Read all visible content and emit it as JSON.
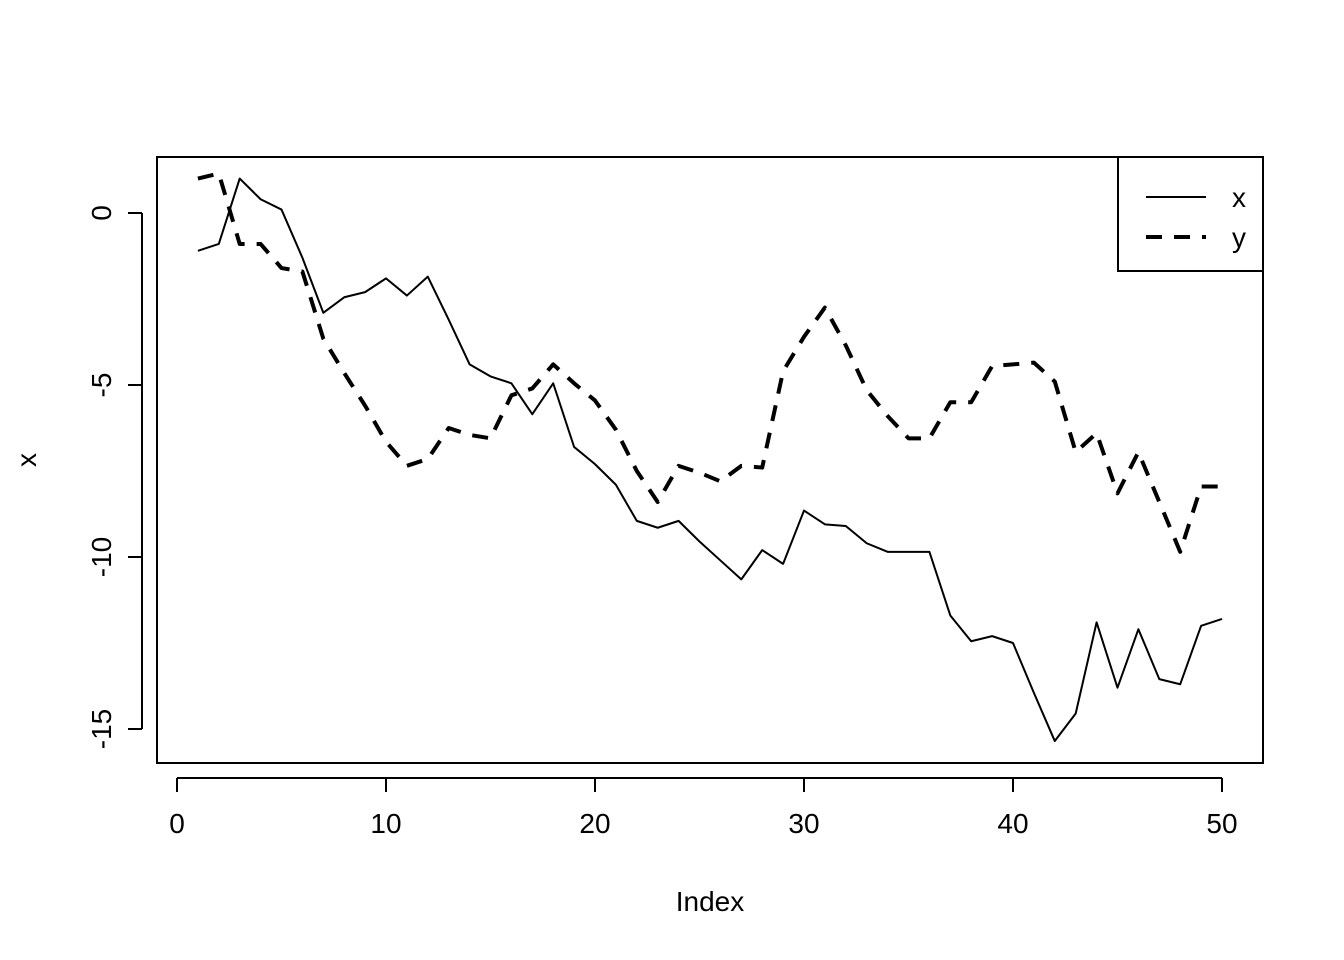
{
  "chart_data": {
    "type": "line",
    "title": "",
    "xlabel": "Index",
    "ylabel": "x",
    "xlim": [
      0,
      51
    ],
    "ylim": [
      -15.3,
      1.6
    ],
    "x_ticks": [
      0,
      10,
      20,
      30,
      40,
      50
    ],
    "y_ticks": [
      0,
      -5,
      -10,
      -15
    ],
    "grid": false,
    "legend_position": "top-right",
    "x": [
      1,
      2,
      3,
      4,
      5,
      6,
      7,
      8,
      9,
      10,
      11,
      12,
      13,
      14,
      15,
      16,
      17,
      18,
      19,
      20,
      21,
      22,
      23,
      24,
      25,
      26,
      27,
      28,
      29,
      30,
      31,
      32,
      33,
      34,
      35,
      36,
      37,
      38,
      39,
      40,
      41,
      42,
      43,
      44,
      45,
      46,
      47,
      48,
      49,
      50
    ],
    "series": [
      {
        "name": "x",
        "line_style": "solid",
        "color": "#000000",
        "values": [
          -1.1,
          -0.9,
          1.0,
          0.4,
          0.1,
          -1.3,
          -2.9,
          -2.45,
          -2.3,
          -1.9,
          -2.4,
          -1.85,
          -3.1,
          -4.4,
          -4.75,
          -4.95,
          -5.85,
          -4.95,
          -6.8,
          -7.3,
          -7.9,
          -8.95,
          -9.15,
          -8.95,
          -9.55,
          -10.1,
          -10.65,
          -9.8,
          -10.2,
          -8.65,
          -9.05,
          -9.1,
          -9.6,
          -9.85,
          -9.85,
          -9.85,
          -11.7,
          -12.45,
          -12.3,
          -12.5,
          -13.95,
          -15.35,
          -14.55,
          -11.9,
          -13.8,
          -12.1,
          -13.55,
          -13.7,
          -12.0,
          -11.8
        ]
      },
      {
        "name": "y",
        "line_style": "dashed",
        "color": "#000000",
        "values": [
          1.0,
          1.15,
          -0.9,
          -0.9,
          -1.6,
          -1.7,
          -3.65,
          -4.65,
          -5.6,
          -6.65,
          -7.35,
          -7.15,
          -6.25,
          -6.45,
          -6.55,
          -5.3,
          -5.1,
          -4.4,
          -4.95,
          -5.45,
          -6.3,
          -7.5,
          -8.4,
          -7.35,
          -7.55,
          -7.8,
          -7.35,
          -7.4,
          -4.6,
          -3.6,
          -2.75,
          -3.85,
          -5.15,
          -5.9,
          -6.55,
          -6.55,
          -5.5,
          -5.5,
          -4.45,
          -4.4,
          -4.35,
          -4.9,
          -6.95,
          -6.4,
          -8.15,
          -6.95,
          -8.4,
          -9.85,
          -7.95,
          -7.95
        ]
      }
    ]
  }
}
